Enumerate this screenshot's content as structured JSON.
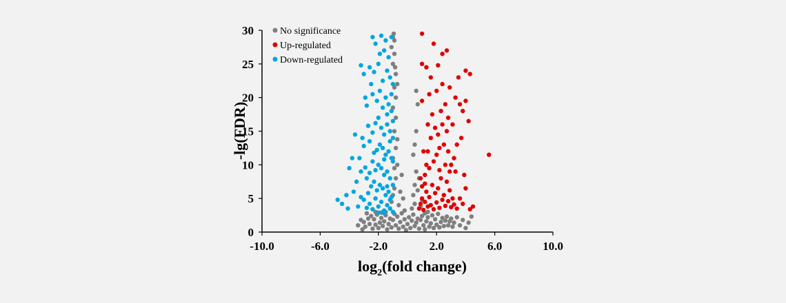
{
  "chart_data": {
    "type": "scatter",
    "title": "",
    "xlabel_main": "log",
    "xlabel_sub": "2",
    "xlabel_rest": "(fold change)",
    "ylabel": "-lg(FDR)",
    "xlim": [
      -10,
      10
    ],
    "ylim": [
      0,
      30
    ],
    "xticks": [
      "-10.0",
      "-6.0",
      "-2.0",
      "2.0",
      "6.0",
      "10.0"
    ],
    "yticks": [
      "0",
      "5",
      "10",
      "15",
      "20",
      "25",
      "30"
    ],
    "legend_position": "top-left",
    "colors": {
      "none": "#7f7f7f",
      "up": "#e00000",
      "down": "#00a6e0"
    },
    "series": [
      {
        "name": "No significance",
        "color": "#7f7f7f",
        "points": [
          [
            -3.2,
            1.8
          ],
          [
            -3.0,
            1.5
          ],
          [
            -2.9,
            0.8
          ],
          [
            -2.7,
            2.0
          ],
          [
            -2.6,
            1.2
          ],
          [
            -2.5,
            2.4
          ],
          [
            -2.4,
            0.5
          ],
          [
            -2.3,
            1.9
          ],
          [
            -2.2,
            1.1
          ],
          [
            -2.1,
            2.6
          ],
          [
            -2.0,
            0.6
          ],
          [
            -1.9,
            1.4
          ],
          [
            -1.8,
            2.1
          ],
          [
            -1.7,
            0.9
          ],
          [
            -1.6,
            1.6
          ],
          [
            -1.5,
            2.5
          ],
          [
            -1.4,
            0.4
          ],
          [
            -1.3,
            1.2
          ],
          [
            -1.2,
            2.0
          ],
          [
            -1.1,
            0.7
          ],
          [
            -1.0,
            1.8
          ],
          [
            -0.9,
            2.7
          ],
          [
            -0.8,
            1.0
          ],
          [
            -0.7,
            2.3
          ],
          [
            -0.6,
            0.5
          ],
          [
            -0.5,
            1.5
          ],
          [
            -0.4,
            2.8
          ],
          [
            -0.3,
            0.8
          ],
          [
            -0.2,
            1.9
          ],
          [
            -0.1,
            0.3
          ],
          [
            0.0,
            1.2
          ],
          [
            0.1,
            2.2
          ],
          [
            0.2,
            0.6
          ],
          [
            0.3,
            1.7
          ],
          [
            0.4,
            2.6
          ],
          [
            0.5,
            0.9
          ],
          [
            0.6,
            1.4
          ],
          [
            0.7,
            2.0
          ],
          [
            0.8,
            0.5
          ],
          [
            0.9,
            1.8
          ],
          [
            1.0,
            2.4
          ],
          [
            1.1,
            1.0
          ],
          [
            1.2,
            0.4
          ],
          [
            1.3,
            1.6
          ],
          [
            1.4,
            2.2
          ],
          [
            1.5,
            0.8
          ],
          [
            1.6,
            1.3
          ],
          [
            1.7,
            2.5
          ],
          [
            1.8,
            0.6
          ],
          [
            1.9,
            1.9
          ],
          [
            2.0,
            1.1
          ],
          [
            2.1,
            2.7
          ],
          [
            2.2,
            0.7
          ],
          [
            2.3,
            1.5
          ],
          [
            2.4,
            2.1
          ],
          [
            2.5,
            0.9
          ],
          [
            2.6,
            1.7
          ],
          [
            2.7,
            2.3
          ],
          [
            2.8,
            1.0
          ],
          [
            2.9,
            1.6
          ],
          [
            3.0,
            2.0
          ],
          [
            3.1,
            0.8
          ],
          [
            3.2,
            1.4
          ],
          [
            3.4,
            2.2
          ],
          [
            3.6,
            1.0
          ],
          [
            3.8,
            1.8
          ],
          [
            4.0,
            0.6
          ],
          [
            4.2,
            1.4
          ],
          [
            4.4,
            2.3
          ],
          [
            -3.4,
            1.0
          ],
          [
            -3.1,
            0.4
          ],
          [
            -2.8,
            2.8
          ],
          [
            -1.2,
            3.5
          ],
          [
            -1.1,
            4.5
          ],
          [
            -1.0,
            5.5
          ],
          [
            -0.9,
            6.5
          ],
          [
            -0.8,
            8.0
          ],
          [
            -0.9,
            9.5
          ],
          [
            -1.0,
            11.0
          ],
          [
            -0.8,
            12.5
          ],
          [
            -0.7,
            13.8
          ],
          [
            -0.9,
            15.0
          ],
          [
            -0.8,
            17.0
          ],
          [
            -1.0,
            18.5
          ],
          [
            -0.8,
            20.0
          ],
          [
            -0.9,
            21.5
          ],
          [
            -0.7,
            22.0
          ],
          [
            -0.8,
            23.5
          ],
          [
            -1.0,
            25.0
          ],
          [
            -0.9,
            26.5
          ],
          [
            -1.1,
            27.5
          ],
          [
            -0.9,
            28.5
          ],
          [
            -1.0,
            29.0
          ],
          [
            -0.95,
            29.5
          ],
          [
            -0.85,
            24.5
          ],
          [
            -0.6,
            4.0
          ],
          [
            -0.5,
            6.0
          ],
          [
            -0.4,
            8.5
          ],
          [
            -0.3,
            5.0
          ],
          [
            -0.2,
            3.2
          ],
          [
            0.3,
            3.5
          ],
          [
            0.4,
            5.5
          ],
          [
            0.5,
            7.0
          ],
          [
            0.6,
            9.0
          ],
          [
            0.7,
            6.2
          ],
          [
            0.5,
            4.2
          ],
          [
            0.4,
            11.5
          ],
          [
            0.5,
            13.0
          ],
          [
            0.6,
            15.0
          ],
          [
            0.7,
            19.0
          ],
          [
            0.6,
            21.0
          ],
          [
            0.9,
            3.8
          ],
          [
            1.0,
            4.8
          ],
          [
            0.8,
            8.0
          ],
          [
            1.2,
            2.8
          ],
          [
            1.4,
            3.0
          ],
          [
            -1.5,
            3.0
          ],
          [
            -1.8,
            2.9
          ],
          [
            -2.2,
            3.0
          ],
          [
            -0.7,
            10.0
          ]
        ]
      },
      {
        "name": "Up-regulated",
        "color": "#e00000",
        "points": [
          [
            0.8,
            3.5
          ],
          [
            0.9,
            4.2
          ],
          [
            1.0,
            5.0
          ],
          [
            1.1,
            3.3
          ],
          [
            1.2,
            4.5
          ],
          [
            1.3,
            6.0
          ],
          [
            1.4,
            3.8
          ],
          [
            1.5,
            5.2
          ],
          [
            1.6,
            4.0
          ],
          [
            1.7,
            7.0
          ],
          [
            1.8,
            3.4
          ],
          [
            1.9,
            5.8
          ],
          [
            2.0,
            4.4
          ],
          [
            2.1,
            6.5
          ],
          [
            2.2,
            3.6
          ],
          [
            2.3,
            8.0
          ],
          [
            2.4,
            4.8
          ],
          [
            2.5,
            5.5
          ],
          [
            2.6,
            3.9
          ],
          [
            2.7,
            7.5
          ],
          [
            2.8,
            4.6
          ],
          [
            2.9,
            6.2
          ],
          [
            3.0,
            3.7
          ],
          [
            3.1,
            5.0
          ],
          [
            3.2,
            4.1
          ],
          [
            3.3,
            9.0
          ],
          [
            3.4,
            3.5
          ],
          [
            1.2,
            8.5
          ],
          [
            1.5,
            9.5
          ],
          [
            1.8,
            10.5
          ],
          [
            2.0,
            11.5
          ],
          [
            2.2,
            12.5
          ],
          [
            2.5,
            13.0
          ],
          [
            2.8,
            12.0
          ],
          [
            3.0,
            10.0
          ],
          [
            3.2,
            11.0
          ],
          [
            1.4,
            12.0
          ],
          [
            1.6,
            14.0
          ],
          [
            1.9,
            15.5
          ],
          [
            2.1,
            14.5
          ],
          [
            2.4,
            16.0
          ],
          [
            2.7,
            15.0
          ],
          [
            1.7,
            17.5
          ],
          [
            2.3,
            18.0
          ],
          [
            2.6,
            19.0
          ],
          [
            1.0,
            19.5
          ],
          [
            1.5,
            20.5
          ],
          [
            2.0,
            21.0
          ],
          [
            2.4,
            22.0
          ],
          [
            2.9,
            21.5
          ],
          [
            3.3,
            20.0
          ],
          [
            3.6,
            19.0
          ],
          [
            4.0,
            19.5
          ],
          [
            4.2,
            16.5
          ],
          [
            3.8,
            18.0
          ],
          [
            3.5,
            23.0
          ],
          [
            4.0,
            24.0
          ],
          [
            4.3,
            23.5
          ],
          [
            1.6,
            23.0
          ],
          [
            1.3,
            24.5
          ],
          [
            2.1,
            24.8
          ],
          [
            2.4,
            26.5
          ],
          [
            1.0,
            25.0
          ],
          [
            1.8,
            28.0
          ],
          [
            2.7,
            27.0
          ],
          [
            1.0,
            29.5
          ],
          [
            4.5,
            3.8
          ],
          [
            4.3,
            3.4
          ],
          [
            5.6,
            11.5
          ],
          [
            3.9,
            8.5
          ],
          [
            4.0,
            6.5
          ],
          [
            3.6,
            5.0
          ],
          [
            3.8,
            4.2
          ],
          [
            1.0,
            6.8
          ],
          [
            1.2,
            7.2
          ],
          [
            2.6,
            10.0
          ],
          [
            2.9,
            9.0
          ],
          [
            3.4,
            13.0
          ],
          [
            3.7,
            14.0
          ],
          [
            3.1,
            16.0
          ],
          [
            1.3,
            10.0
          ],
          [
            1.1,
            12.0
          ],
          [
            0.9,
            8.0
          ],
          [
            1.4,
            16.0
          ],
          [
            2.2,
            9.2
          ],
          [
            2.8,
            17.0
          ]
        ]
      },
      {
        "name": "Down-regulated",
        "color": "#00a6e0",
        "points": [
          [
            -1.0,
            3.0
          ],
          [
            -1.2,
            3.5
          ],
          [
            -1.4,
            4.0
          ],
          [
            -1.6,
            3.2
          ],
          [
            -1.8,
            4.5
          ],
          [
            -2.0,
            3.8
          ],
          [
            -2.2,
            5.0
          ],
          [
            -2.4,
            3.4
          ],
          [
            -2.6,
            4.2
          ],
          [
            -2.8,
            3.6
          ],
          [
            -3.0,
            4.8
          ],
          [
            -1.1,
            5.2
          ],
          [
            -1.3,
            6.0
          ],
          [
            -1.5,
            5.5
          ],
          [
            -1.7,
            6.5
          ],
          [
            -1.9,
            7.0
          ],
          [
            -2.1,
            6.2
          ],
          [
            -2.3,
            7.5
          ],
          [
            -2.5,
            6.8
          ],
          [
            -2.7,
            5.8
          ],
          [
            -1.0,
            7.0
          ],
          [
            -1.2,
            8.0
          ],
          [
            -1.4,
            9.0
          ],
          [
            -1.6,
            8.5
          ],
          [
            -1.8,
            9.5
          ],
          [
            -2.0,
            10.0
          ],
          [
            -2.2,
            9.2
          ],
          [
            -2.4,
            10.5
          ],
          [
            -2.6,
            8.8
          ],
          [
            -2.9,
            9.6
          ],
          [
            -1.1,
            11.0
          ],
          [
            -1.3,
            12.0
          ],
          [
            -1.5,
            11.5
          ],
          [
            -1.7,
            12.5
          ],
          [
            -1.9,
            13.0
          ],
          [
            -2.1,
            12.2
          ],
          [
            -2.3,
            11.8
          ],
          [
            -2.6,
            13.5
          ],
          [
            -3.0,
            12.8
          ],
          [
            -3.3,
            11.0
          ],
          [
            -1.0,
            14.0
          ],
          [
            -1.2,
            15.0
          ],
          [
            -1.4,
            16.0
          ],
          [
            -1.6,
            14.5
          ],
          [
            -1.8,
            15.5
          ],
          [
            -2.0,
            17.0
          ],
          [
            -2.2,
            16.2
          ],
          [
            -2.4,
            14.8
          ],
          [
            -2.7,
            15.8
          ],
          [
            -3.1,
            14.0
          ],
          [
            -1.1,
            18.0
          ],
          [
            -1.3,
            19.0
          ],
          [
            -1.5,
            20.0
          ],
          [
            -1.7,
            18.5
          ],
          [
            -1.9,
            21.0
          ],
          [
            -2.1,
            19.5
          ],
          [
            -2.4,
            20.5
          ],
          [
            -2.8,
            18.8
          ],
          [
            -1.0,
            22.0
          ],
          [
            -1.2,
            23.0
          ],
          [
            -1.4,
            24.0
          ],
          [
            -1.7,
            22.5
          ],
          [
            -2.0,
            25.0
          ],
          [
            -2.3,
            23.8
          ],
          [
            -2.6,
            24.5
          ],
          [
            -3.0,
            23.5
          ],
          [
            -3.2,
            24.8
          ],
          [
            -1.3,
            26.0
          ],
          [
            -1.6,
            27.0
          ],
          [
            -1.9,
            26.5
          ],
          [
            -2.2,
            28.0
          ],
          [
            -1.5,
            28.5
          ],
          [
            -1.1,
            29.0
          ],
          [
            -1.8,
            29.2
          ],
          [
            -2.4,
            29.0
          ],
          [
            -3.6,
            14.5
          ],
          [
            -3.8,
            11.0
          ],
          [
            -4.0,
            9.5
          ],
          [
            -3.5,
            7.5
          ],
          [
            -3.7,
            6.0
          ],
          [
            -4.2,
            5.5
          ],
          [
            -4.5,
            4.2
          ],
          [
            -4.8,
            4.8
          ],
          [
            -4.1,
            3.5
          ],
          [
            -3.4,
            3.8
          ],
          [
            -3.2,
            5.2
          ],
          [
            -2.0,
            2.9
          ],
          [
            -1.6,
            2.8
          ],
          [
            -1.2,
            4.8
          ],
          [
            -1.4,
            6.8
          ],
          [
            -1.0,
            10.5
          ],
          [
            -1.2,
            13.5
          ],
          [
            -1.0,
            16.5
          ],
          [
            -1.1,
            20.5
          ],
          [
            -1.4,
            17.5
          ],
          [
            -1.6,
            10.8
          ],
          [
            -2.8,
            8.0
          ],
          [
            -3.2,
            9.0
          ],
          [
            -2.5,
            22.0
          ],
          [
            -2.9,
            20.0
          ]
        ]
      }
    ]
  }
}
